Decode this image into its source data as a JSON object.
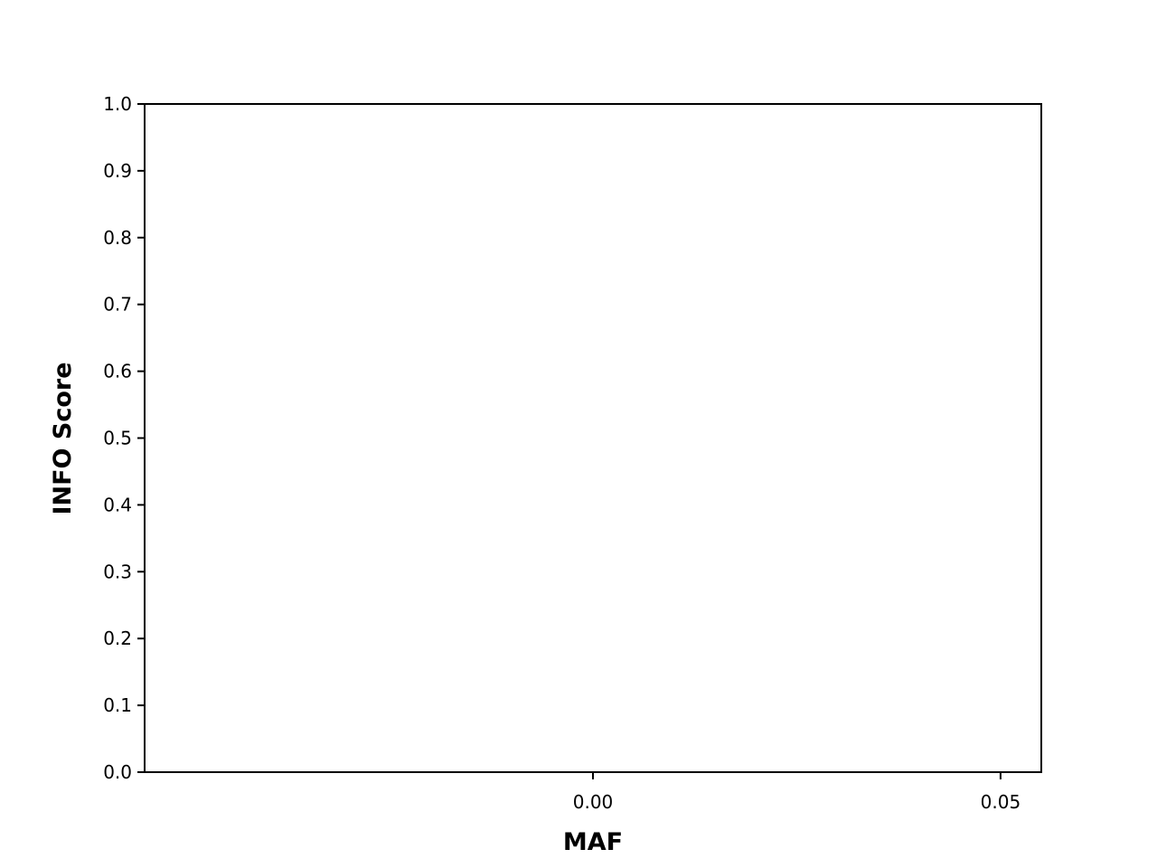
{
  "chart_data": {
    "type": "scatter",
    "title": "",
    "xlabel": "MAF",
    "ylabel": "INFO Score",
    "xlim": [
      -0.055,
      0.055
    ],
    "ylim": [
      0.0,
      1.0
    ],
    "xticks": [
      0.0,
      0.05
    ],
    "xtick_labels": [
      "0.00",
      "0.05"
    ],
    "yticks": [
      0.0,
      0.1,
      0.2,
      0.3,
      0.4,
      0.5,
      0.6,
      0.7,
      0.8,
      0.9,
      1.0
    ],
    "ytick_labels": [
      "0.0",
      "0.1",
      "0.2",
      "0.3",
      "0.4",
      "0.5",
      "0.6",
      "0.7",
      "0.8",
      "0.9",
      "1.0"
    ],
    "grid": false,
    "series": [
      {
        "x": [],
        "y": []
      }
    ]
  }
}
